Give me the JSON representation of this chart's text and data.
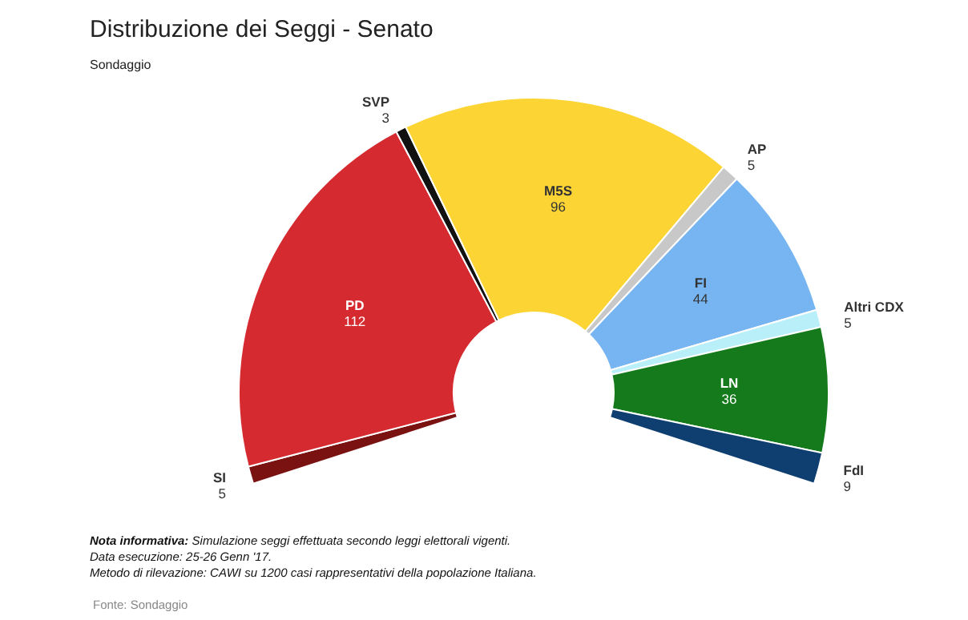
{
  "chart_data": {
    "type": "donut",
    "title": "Distribuzione dei Seggi - Senato",
    "subtitle": "Sondaggio",
    "categories": [
      "SI",
      "PD",
      "SVP",
      "M5S",
      "AP",
      "FI",
      "Altri CDX",
      "LN",
      "FdI"
    ],
    "values": [
      5,
      112,
      3,
      96,
      5,
      44,
      5,
      36,
      9
    ],
    "colors": [
      "#7a1212",
      "#d52b30",
      "#111111",
      "#fcd535",
      "#c8c8c8",
      "#76b5f1",
      "#b8eff9",
      "#147a1b",
      "#0f3f70"
    ],
    "data_labels": true,
    "legend": false,
    "annotations": [
      "Nota informativa: Simulazione seggi effettuata secondo leggi elettorali vigenti.",
      "Data esecuzione: 25-26 Genn '17.",
      "Metodo di rilevazione: CAWI su 1200 casi rappresentativi della popolazione Italiana.",
      "Fonte: Sondaggio"
    ]
  }
}
